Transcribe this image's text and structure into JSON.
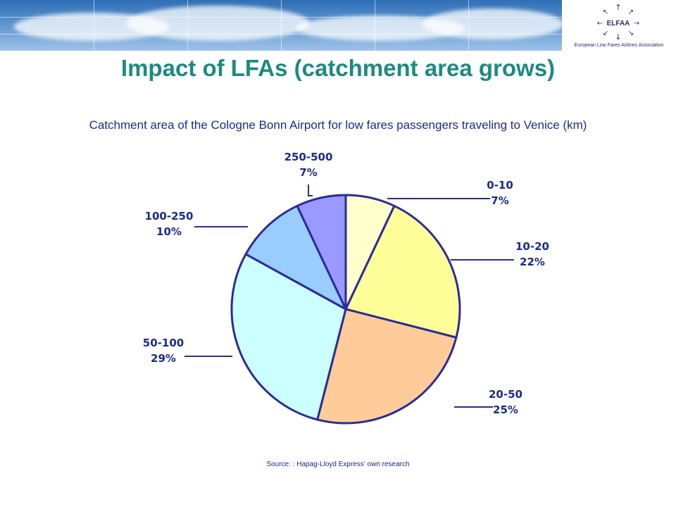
{
  "header": {
    "org_tagline": "European Low Fares Airlines Association",
    "logo_text": "ELFAA"
  },
  "title": "Impact of LFAs (catchment area grows)",
  "subtitle": "Catchment area of the Cologne Bonn Airport  for low fares passengers traveling to Venice (km)",
  "source": "Source: : Hapag-Lloyd Express' own research",
  "chart_data": {
    "type": "pie",
    "title": "Catchment area of the Cologne Bonn Airport  for low fares passengers traveling to Venice (km)",
    "slices": [
      {
        "label": "0-10",
        "value": 7,
        "pct_label": "7%",
        "color": "#ffffcc"
      },
      {
        "label": "10-20",
        "value": 22,
        "pct_label": "22%",
        "color": "#ffff99"
      },
      {
        "label": "20-50",
        "value": 25,
        "pct_label": "25%",
        "color": "#ffcc99"
      },
      {
        "label": "50-100",
        "value": 29,
        "pct_label": "29%",
        "color": "#ccffff"
      },
      {
        "label": "100-250",
        "value": 10,
        "pct_label": "10%",
        "color": "#99ccff"
      },
      {
        "label": "250-500",
        "value": 7,
        "pct_label": "7%",
        "color": "#9999ff"
      }
    ],
    "border_color": "#2b2b9a",
    "label_color": "#1b2b8a"
  },
  "colors": {
    "title": "#1d8a80",
    "text": "#1b2b8a"
  }
}
